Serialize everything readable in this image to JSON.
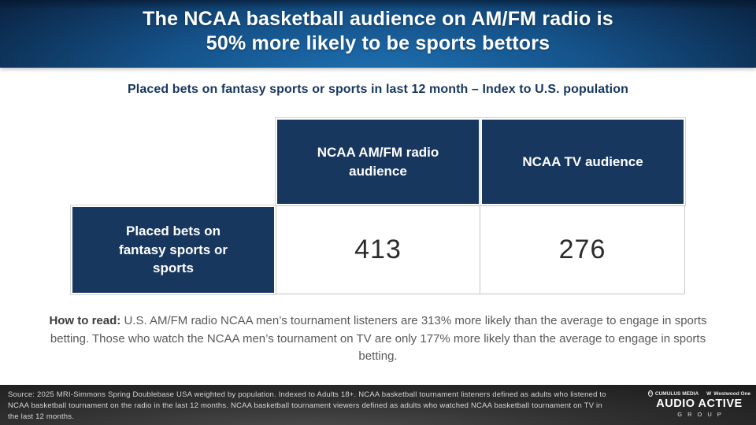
{
  "header": {
    "title_line1": "The NCAA basketball audience on AM/FM radio is",
    "title_line2": "50% more likely to be sports bettors"
  },
  "subtitle": "Placed bets on fantasy sports or sports in last 12 month – Index to U.S. population",
  "table": {
    "column_headers": [
      "NCAA AM/FM radio audience",
      "NCAA TV audience"
    ],
    "row_header": "Placed bets on fantasy sports or sports",
    "values": [
      "413",
      "276"
    ]
  },
  "how_to_read": {
    "label": "How to read:",
    "text": "U.S. AM/FM radio NCAA men’s tournament listeners are 313% more likely than the average to engage in sports betting. Those who watch the NCAA men’s tournament on TV are only 177% more likely than the average to engage in sports betting."
  },
  "footer": {
    "source": "Source: 2025 MRI-Simmons Spring Doublebase USA weighted by population. Indexed to Adults 18+. NCAA basketball tournament listeners defined as adults who listened to NCAA basketball tournament on the radio in the last 12 months. NCAA basketball tournament viewers defined as adults who watched NCAA basketball tournament on TV in the last 12 months.",
    "logo": {
      "cumulus_icon_letter": "C",
      "brand_top_left": "CUMULUS MEDIA",
      "westwood_icon_letter": "W",
      "brand_top_right": "Westwood One",
      "brand_main": "AUDIO ACTIVE",
      "brand_sub": "GROUP"
    }
  },
  "colors": {
    "header_navy_edge": "#0a2342",
    "header_blue_center": "#1e72b4",
    "table_navy": "#17375e",
    "subtitle_navy": "#17375e",
    "body_gray": "#595959",
    "value_text": "#2b2b2b",
    "footer_bg": "#2f2f2f",
    "footer_text": "#d6d6d6"
  },
  "chart_data": {
    "type": "table",
    "title": "Placed bets on fantasy sports or sports in last 12 month – Index to U.S. population",
    "columns": [
      "",
      "NCAA AM/FM radio audience",
      "NCAA TV audience"
    ],
    "rows": [
      [
        "Placed bets on fantasy sports or sports",
        413,
        276
      ]
    ],
    "notes": "Index to U.S. population; AM/FM radio audience indexes 413 (313% more likely), TV audience indexes 276 (177% more likely)"
  }
}
